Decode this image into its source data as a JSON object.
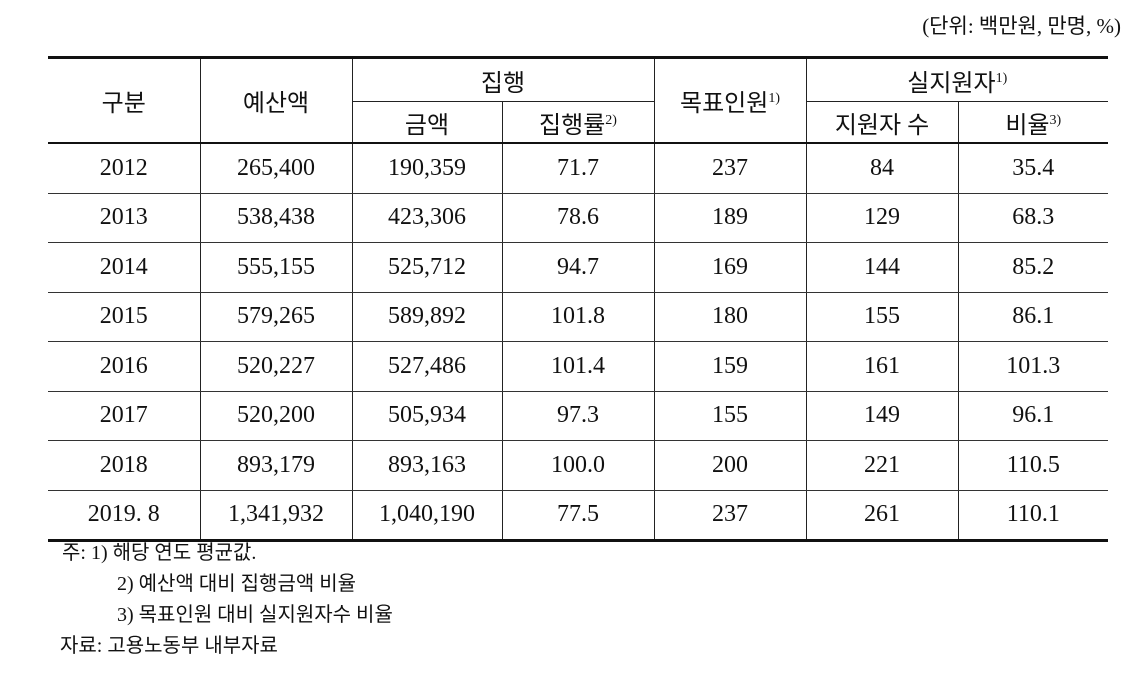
{
  "unit_note": "(단위: 백만원, 만명, %)",
  "headers": {
    "category": "구분",
    "budget": "예산액",
    "execution": "집행",
    "amount": "금액",
    "exec_rate": "집행률",
    "exec_rate_sup": "2)",
    "target": "목표인원",
    "target_sup": "1)",
    "actual": "실지원자",
    "actual_sup": "1)",
    "supported": "지원자 수",
    "ratio": "비율",
    "ratio_sup": "3)"
  },
  "rows": [
    {
      "year": "2012",
      "budget": "265,400",
      "amount": "190,359",
      "rate": "71.7",
      "target": "237",
      "supported": "84",
      "ratio": "35.4"
    },
    {
      "year": "2013",
      "budget": "538,438",
      "amount": "423,306",
      "rate": "78.6",
      "target": "189",
      "supported": "129",
      "ratio": "68.3"
    },
    {
      "year": "2014",
      "budget": "555,155",
      "amount": "525,712",
      "rate": "94.7",
      "target": "169",
      "supported": "144",
      "ratio": "85.2"
    },
    {
      "year": "2015",
      "budget": "579,265",
      "amount": "589,892",
      "rate": "101.8",
      "target": "180",
      "supported": "155",
      "ratio": "86.1"
    },
    {
      "year": "2016",
      "budget": "520,227",
      "amount": "527,486",
      "rate": "101.4",
      "target": "159",
      "supported": "161",
      "ratio": "101.3"
    },
    {
      "year": "2017",
      "budget": "520,200",
      "amount": "505,934",
      "rate": "97.3",
      "target": "155",
      "supported": "149",
      "ratio": "96.1"
    },
    {
      "year": "2018",
      "budget": "893,179",
      "amount": "893,163",
      "rate": "100.0",
      "target": "200",
      "supported": "221",
      "ratio": "110.5"
    },
    {
      "year": "2019. 8",
      "budget": "1,341,932",
      "amount": "1,040,190",
      "rate": "77.5",
      "target": "237",
      "supported": "261",
      "ratio": "110.1"
    }
  ],
  "notes": {
    "n1": "주: 1) 해당 연도 평균값.",
    "n2": "2) 예산액 대비 집행금액 비율",
    "n3": "3) 목표인원 대비 실지원자수 비율",
    "source": "자료: 고용노동부 내부자료"
  }
}
